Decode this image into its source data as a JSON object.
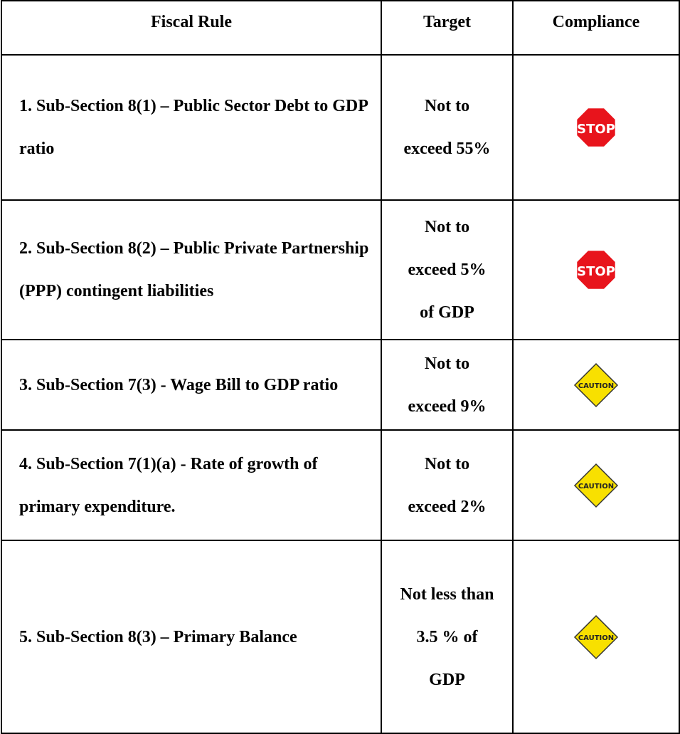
{
  "table": {
    "headers": [
      "Fiscal Rule",
      "Target",
      "Compliance"
    ],
    "rows": [
      {
        "rule": "1.  Sub-Section 8(1) – Public Sector Debt to GDP ratio",
        "target": "Not to exceed 55%",
        "compliance": "STOP"
      },
      {
        "rule": "2.  Sub-Section 8(2) – Public Private Partnership (PPP) contingent liabilities",
        "target": "Not to exceed 5% of GDP",
        "compliance": "STOP"
      },
      {
        "rule": "3.  Sub-Section 7(3) - Wage Bill to GDP ratio",
        "target": "Not to exceed 9%",
        "compliance": "CAUTION"
      },
      {
        "rule": "4.  Sub-Section 7(1)(a) - Rate of growth of primary expenditure.",
        "target": "Not to exceed 2%",
        "compliance": "CAUTION"
      },
      {
        "rule": "5.  Sub-Section 8(3) – Primary Balance",
        "target": "Not less than 3.5 % of GDP",
        "compliance": "CAUTION"
      }
    ]
  }
}
